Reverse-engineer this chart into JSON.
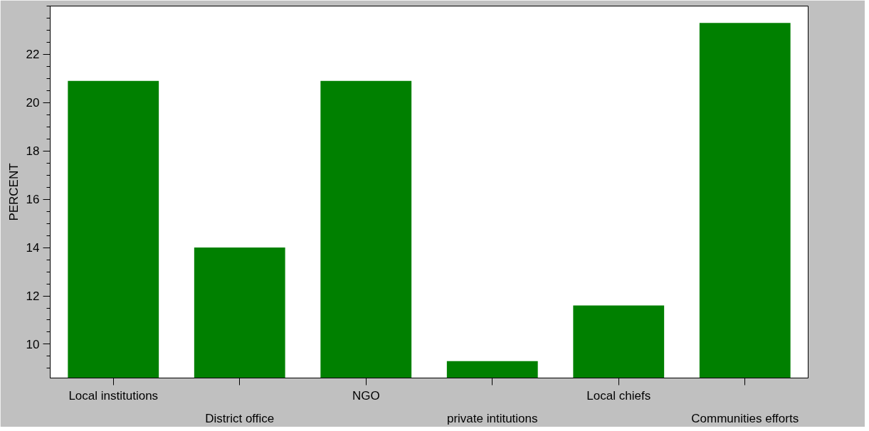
{
  "chart_data": {
    "type": "bar",
    "ylabel": "PERCENT",
    "categories": [
      "Local institutions",
      "District office",
      "NGO",
      "private intitutions",
      "Local chiefs",
      "Communities efforts"
    ],
    "values": [
      20.9,
      14.0,
      20.9,
      9.3,
      11.6,
      23.3
    ],
    "color": "#008000",
    "ylim": [
      8.6,
      24
    ],
    "yticks": [
      10,
      12,
      14,
      16,
      18,
      20,
      22
    ],
    "grid": false
  }
}
